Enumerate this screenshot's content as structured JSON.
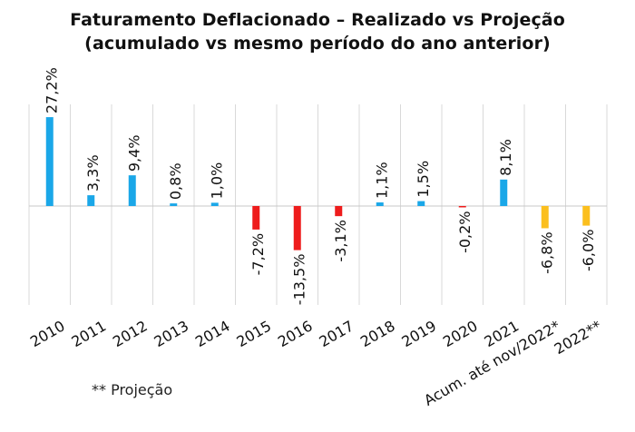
{
  "title": {
    "line1": "Faturamento Deflacionado – Realizado vs Projeção",
    "line2": "(acumulado vs mesmo período do ano anterior)"
  },
  "footnote": "** Projeção",
  "colors": {
    "positive": "#1aa7e8",
    "negative": "#ee1c1c",
    "projection": "#fbbf1e",
    "zero_line": "#c9c9c9",
    "grid_divider": "#d9d9d9",
    "label_text": "#111111"
  },
  "chart_data": {
    "type": "bar",
    "categories": [
      "2010",
      "2011",
      "2012",
      "2013",
      "2014",
      "2015",
      "2016",
      "2017",
      "2018",
      "2019",
      "2020",
      "2021",
      "Acum. até nov/2022*",
      "2022**"
    ],
    "values": [
      27.2,
      3.3,
      9.4,
      0.8,
      1.0,
      -7.2,
      -13.5,
      -3.1,
      1.1,
      1.5,
      -0.2,
      8.1,
      -6.8,
      -6.0
    ],
    "data_labels": [
      "27,2%",
      "3,3%",
      "9,4%",
      "0,8%",
      "1,0%",
      "-7,2%",
      "-13,5%",
      "-3,1%",
      "1,1%",
      "1,5%",
      "-0,2%",
      "8,1%",
      "-6,8%",
      "-6,0%"
    ],
    "bar_colors": [
      "#1aa7e8",
      "#1aa7e8",
      "#1aa7e8",
      "#1aa7e8",
      "#1aa7e8",
      "#ee1c1c",
      "#ee1c1c",
      "#ee1c1c",
      "#1aa7e8",
      "#1aa7e8",
      "#ee1c1c",
      "#1aa7e8",
      "#fbbf1e",
      "#fbbf1e"
    ],
    "title": "Faturamento Deflacionado – Realizado vs Projeção",
    "subtitle": "(acumulado vs mesmo período do ano anterior)",
    "xlabel": "",
    "ylabel": "",
    "ylim": [
      -15,
      28
    ],
    "grid": false,
    "legend": "none"
  }
}
